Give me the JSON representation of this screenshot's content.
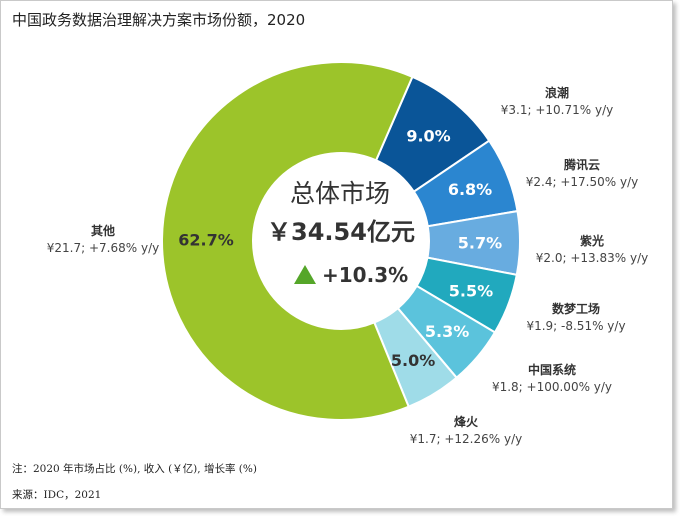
{
  "chart_data": {
    "type": "pie",
    "variant": "donut",
    "title": "中国政务数据治理解决方案市场份额，2020",
    "center": {
      "line1": "总体市场",
      "line2": "￥34.54亿元",
      "growth": "+10.3%",
      "growth_icon": "up-triangle-icon"
    },
    "slices": [
      {
        "name": "浪潮",
        "share": 9.0,
        "share_label": "9.0%",
        "detail": "¥3.1; +10.71% y/y",
        "color": "#0a5598"
      },
      {
        "name": "腾讯云",
        "share": 6.8,
        "share_label": "6.8%",
        "detail": "¥2.4; +17.50% y/y",
        "color": "#2b86d0"
      },
      {
        "name": "紫光",
        "share": 5.7,
        "share_label": "5.7%",
        "detail": "¥2.0; +13.83% y/y",
        "color": "#68ace0"
      },
      {
        "name": "数梦工场",
        "share": 5.5,
        "share_label": "5.5%",
        "detail": "¥1.9; -8.51% y/y",
        "color": "#21a9be"
      },
      {
        "name": "中国系统",
        "share": 5.3,
        "share_label": "5.3%",
        "detail": "¥1.8; +100.00% y/y",
        "color": "#5bc3dc"
      },
      {
        "name": "烽火",
        "share": 5.0,
        "share_label": "5.0%",
        "detail": "¥1.7; +12.26% y/y",
        "color": "#9fdce8"
      },
      {
        "name": "其他",
        "share": 62.7,
        "share_label": "62.7%",
        "detail": "¥21.7; +7.68% y/y",
        "color": "#9cc42a"
      }
    ],
    "legend": "none",
    "colors": {
      "growth": "#55a629",
      "center_text": "#333333"
    }
  },
  "footer": {
    "note": "注：2020 年市场占比 (%), 收入 (￥亿), 增长率 (%)",
    "source": "来源：IDC，2021"
  }
}
